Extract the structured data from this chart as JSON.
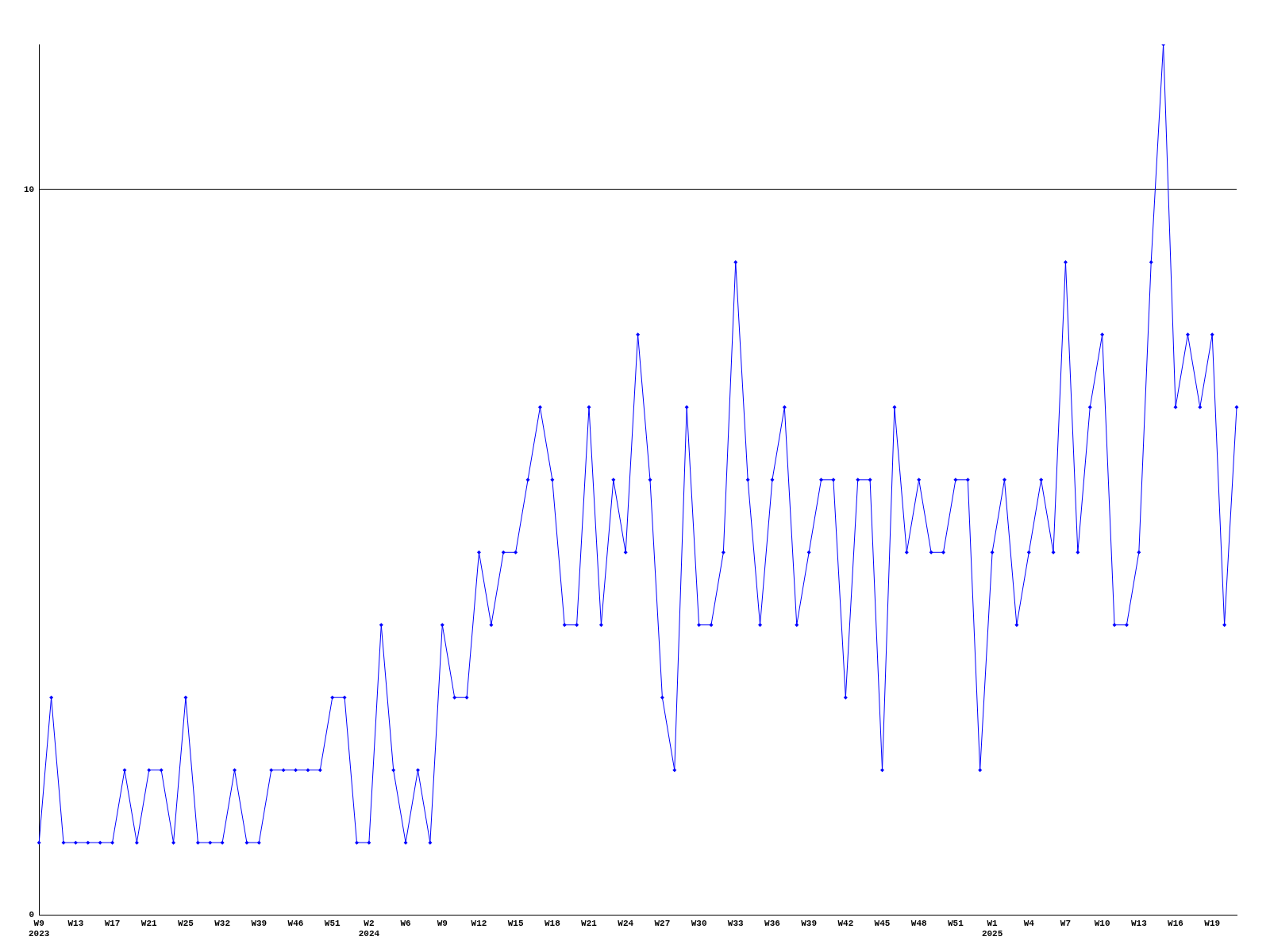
{
  "chart_data": {
    "type": "line",
    "categories": [
      "W9\n2023",
      null,
      null,
      "W13",
      null,
      null,
      "W17",
      null,
      null,
      "W21",
      null,
      null,
      "W25",
      null,
      null,
      "W32",
      null,
      null,
      "W39",
      null,
      null,
      "W46",
      null,
      null,
      "W51",
      null,
      null,
      "W2\n2024",
      null,
      null,
      "W6",
      null,
      null,
      "W9",
      null,
      null,
      "W12",
      null,
      null,
      "W15",
      null,
      null,
      "W18",
      null,
      null,
      "W21",
      null,
      null,
      "W24",
      null,
      null,
      "W27",
      null,
      null,
      "W30",
      null,
      null,
      "W33",
      null,
      null,
      "W36",
      null,
      null,
      "W39",
      null,
      null,
      "W42",
      null,
      null,
      "W45",
      null,
      null,
      "W48",
      null,
      null,
      "W51",
      null,
      null,
      "W1\n2025",
      null,
      null,
      "W4",
      null,
      null,
      "W7",
      null,
      null,
      "W10",
      null,
      null,
      "W13",
      null,
      null,
      "W16",
      null,
      null,
      "W19",
      null,
      null
    ],
    "series": [
      {
        "color": "#0000ff",
        "values": [
          1,
          3,
          1,
          1,
          1,
          1,
          1,
          2,
          1,
          2,
          2,
          1,
          3,
          1,
          1,
          1,
          2,
          1,
          1,
          2,
          2,
          2,
          2,
          2,
          3,
          3,
          1,
          1,
          4,
          2,
          1,
          2,
          1,
          4,
          3,
          3,
          5,
          4,
          5,
          5,
          6,
          7,
          6,
          4,
          4,
          7,
          4,
          6,
          5,
          8,
          6,
          3,
          2,
          7,
          4,
          4,
          5,
          9,
          6,
          4,
          6,
          7,
          4,
          5,
          6,
          6,
          3,
          6,
          6,
          2,
          7,
          5,
          6,
          5,
          5,
          6,
          6,
          2,
          5,
          6,
          4,
          5,
          6,
          5,
          9,
          5,
          7,
          8,
          4,
          4,
          5,
          9,
          12,
          7,
          8,
          7,
          8,
          4,
          7
        ]
      }
    ],
    "ylim": [
      0,
      12
    ],
    "yticks": [
      0,
      10
    ],
    "grid": "y",
    "legend": false,
    "marker": "diamond",
    "line_style": "solid"
  }
}
